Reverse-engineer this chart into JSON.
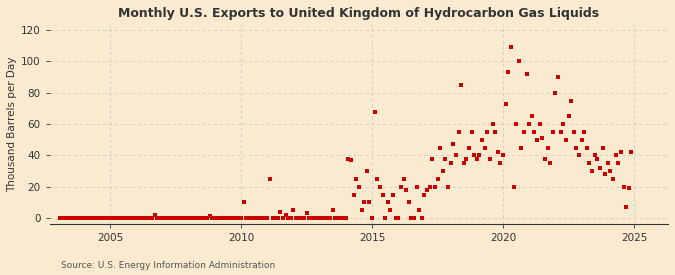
{
  "title": "Monthly U.S. Exports to United Kingdom of Hydrocarbon Gas Liquids",
  "ylabel": "Thousand Barrels per Day",
  "source": "Source: U.S. Energy Information Administration",
  "background_color": "#faebd0",
  "dot_color": "#cc0000",
  "grid_color": "#cccccc",
  "xlim": [
    2002.7,
    2026.3
  ],
  "ylim": [
    -4,
    124
  ],
  "yticks": [
    0,
    20,
    40,
    60,
    80,
    100,
    120
  ],
  "xticks": [
    2005,
    2010,
    2015,
    2020,
    2025
  ],
  "data_points": [
    [
      2003.1,
      0
    ],
    [
      2003.2,
      0
    ],
    [
      2003.3,
      0
    ],
    [
      2003.4,
      0
    ],
    [
      2003.5,
      0
    ],
    [
      2003.6,
      0
    ],
    [
      2003.7,
      0
    ],
    [
      2003.8,
      0
    ],
    [
      2003.9,
      0
    ],
    [
      2004.0,
      0
    ],
    [
      2004.1,
      0
    ],
    [
      2004.2,
      0
    ],
    [
      2004.3,
      0
    ],
    [
      2004.4,
      0
    ],
    [
      2004.5,
      0
    ],
    [
      2004.6,
      0
    ],
    [
      2004.7,
      0
    ],
    [
      2004.8,
      0
    ],
    [
      2004.9,
      0
    ],
    [
      2005.0,
      0
    ],
    [
      2005.1,
      0
    ],
    [
      2005.2,
      0
    ],
    [
      2005.3,
      0
    ],
    [
      2005.4,
      0
    ],
    [
      2005.5,
      0
    ],
    [
      2005.6,
      0
    ],
    [
      2005.7,
      0
    ],
    [
      2005.8,
      0
    ],
    [
      2005.9,
      0
    ],
    [
      2006.0,
      0
    ],
    [
      2006.1,
      0
    ],
    [
      2006.2,
      0
    ],
    [
      2006.3,
      0
    ],
    [
      2006.4,
      0
    ],
    [
      2006.5,
      0
    ],
    [
      2006.6,
      0
    ],
    [
      2006.7,
      2
    ],
    [
      2006.8,
      0
    ],
    [
      2006.9,
      0
    ],
    [
      2007.0,
      0
    ],
    [
      2007.1,
      0
    ],
    [
      2007.2,
      0
    ],
    [
      2007.3,
      0
    ],
    [
      2007.4,
      0
    ],
    [
      2007.5,
      0
    ],
    [
      2007.6,
      0
    ],
    [
      2007.7,
      0
    ],
    [
      2007.8,
      0
    ],
    [
      2007.9,
      0
    ],
    [
      2008.0,
      0
    ],
    [
      2008.1,
      0
    ],
    [
      2008.2,
      0
    ],
    [
      2008.3,
      0
    ],
    [
      2008.4,
      0
    ],
    [
      2008.5,
      0
    ],
    [
      2008.6,
      0
    ],
    [
      2008.7,
      0
    ],
    [
      2008.8,
      1
    ],
    [
      2008.9,
      0
    ],
    [
      2009.0,
      0
    ],
    [
      2009.1,
      0
    ],
    [
      2009.2,
      0
    ],
    [
      2009.3,
      0
    ],
    [
      2009.4,
      0
    ],
    [
      2009.5,
      0
    ],
    [
      2009.6,
      0
    ],
    [
      2009.7,
      0
    ],
    [
      2009.8,
      0
    ],
    [
      2009.9,
      0
    ],
    [
      2010.0,
      0
    ],
    [
      2010.1,
      10
    ],
    [
      2010.2,
      0
    ],
    [
      2010.3,
      0
    ],
    [
      2010.4,
      0
    ],
    [
      2010.5,
      0
    ],
    [
      2010.6,
      0
    ],
    [
      2010.7,
      0
    ],
    [
      2010.8,
      0
    ],
    [
      2010.9,
      0
    ],
    [
      2011.0,
      0
    ],
    [
      2011.1,
      25
    ],
    [
      2011.2,
      0
    ],
    [
      2011.3,
      0
    ],
    [
      2011.4,
      0
    ],
    [
      2011.5,
      4
    ],
    [
      2011.6,
      0
    ],
    [
      2011.7,
      2
    ],
    [
      2011.8,
      0
    ],
    [
      2011.9,
      0
    ],
    [
      2012.0,
      5
    ],
    [
      2012.1,
      0
    ],
    [
      2012.2,
      0
    ],
    [
      2012.3,
      0
    ],
    [
      2012.4,
      0
    ],
    [
      2012.5,
      3
    ],
    [
      2012.6,
      0
    ],
    [
      2012.7,
      0
    ],
    [
      2012.8,
      0
    ],
    [
      2012.9,
      0
    ],
    [
      2013.0,
      0
    ],
    [
      2013.1,
      0
    ],
    [
      2013.2,
      0
    ],
    [
      2013.3,
      0
    ],
    [
      2013.4,
      0
    ],
    [
      2013.5,
      5
    ],
    [
      2013.6,
      0
    ],
    [
      2013.7,
      0
    ],
    [
      2013.8,
      0
    ],
    [
      2013.9,
      0
    ],
    [
      2014.0,
      0
    ],
    [
      2014.1,
      38
    ],
    [
      2014.2,
      37
    ],
    [
      2014.3,
      15
    ],
    [
      2014.4,
      25
    ],
    [
      2014.5,
      20
    ],
    [
      2014.6,
      5
    ],
    [
      2014.7,
      10
    ],
    [
      2014.8,
      30
    ],
    [
      2014.9,
      10
    ],
    [
      2015.0,
      0
    ],
    [
      2015.1,
      68
    ],
    [
      2015.2,
      25
    ],
    [
      2015.3,
      20
    ],
    [
      2015.4,
      15
    ],
    [
      2015.5,
      0
    ],
    [
      2015.6,
      10
    ],
    [
      2015.7,
      5
    ],
    [
      2015.8,
      15
    ],
    [
      2015.9,
      0
    ],
    [
      2016.0,
      0
    ],
    [
      2016.1,
      20
    ],
    [
      2016.2,
      25
    ],
    [
      2016.3,
      18
    ],
    [
      2016.4,
      10
    ],
    [
      2016.5,
      0
    ],
    [
      2016.6,
      0
    ],
    [
      2016.7,
      20
    ],
    [
      2016.8,
      5
    ],
    [
      2016.9,
      0
    ],
    [
      2017.0,
      15
    ],
    [
      2017.1,
      18
    ],
    [
      2017.2,
      20
    ],
    [
      2017.3,
      38
    ],
    [
      2017.4,
      20
    ],
    [
      2017.5,
      25
    ],
    [
      2017.6,
      45
    ],
    [
      2017.7,
      30
    ],
    [
      2017.8,
      38
    ],
    [
      2017.9,
      20
    ],
    [
      2018.0,
      35
    ],
    [
      2018.1,
      47
    ],
    [
      2018.2,
      40
    ],
    [
      2018.3,
      55
    ],
    [
      2018.4,
      85
    ],
    [
      2018.5,
      35
    ],
    [
      2018.6,
      38
    ],
    [
      2018.7,
      45
    ],
    [
      2018.8,
      55
    ],
    [
      2018.9,
      40
    ],
    [
      2019.0,
      38
    ],
    [
      2019.1,
      40
    ],
    [
      2019.2,
      50
    ],
    [
      2019.3,
      45
    ],
    [
      2019.4,
      55
    ],
    [
      2019.5,
      38
    ],
    [
      2019.6,
      60
    ],
    [
      2019.7,
      55
    ],
    [
      2019.8,
      42
    ],
    [
      2019.9,
      35
    ],
    [
      2020.0,
      40
    ],
    [
      2020.1,
      73
    ],
    [
      2020.2,
      93
    ],
    [
      2020.3,
      109
    ],
    [
      2020.4,
      20
    ],
    [
      2020.5,
      60
    ],
    [
      2020.6,
      100
    ],
    [
      2020.7,
      45
    ],
    [
      2020.8,
      55
    ],
    [
      2020.9,
      92
    ],
    [
      2021.0,
      60
    ],
    [
      2021.1,
      65
    ],
    [
      2021.2,
      55
    ],
    [
      2021.3,
      50
    ],
    [
      2021.4,
      60
    ],
    [
      2021.5,
      51
    ],
    [
      2021.6,
      38
    ],
    [
      2021.7,
      45
    ],
    [
      2021.8,
      35
    ],
    [
      2021.9,
      55
    ],
    [
      2022.0,
      80
    ],
    [
      2022.1,
      90
    ],
    [
      2022.2,
      55
    ],
    [
      2022.3,
      60
    ],
    [
      2022.4,
      50
    ],
    [
      2022.5,
      65
    ],
    [
      2022.6,
      75
    ],
    [
      2022.7,
      55
    ],
    [
      2022.8,
      45
    ],
    [
      2022.9,
      40
    ],
    [
      2023.0,
      50
    ],
    [
      2023.1,
      55
    ],
    [
      2023.2,
      45
    ],
    [
      2023.3,
      35
    ],
    [
      2023.4,
      30
    ],
    [
      2023.5,
      40
    ],
    [
      2023.6,
      38
    ],
    [
      2023.7,
      32
    ],
    [
      2023.8,
      45
    ],
    [
      2023.9,
      28
    ],
    [
      2024.0,
      35
    ],
    [
      2024.1,
      30
    ],
    [
      2024.2,
      25
    ],
    [
      2024.3,
      40
    ],
    [
      2024.4,
      35
    ],
    [
      2024.5,
      42
    ],
    [
      2024.6,
      20
    ],
    [
      2024.7,
      7
    ],
    [
      2024.8,
      19
    ],
    [
      2024.9,
      42
    ]
  ]
}
